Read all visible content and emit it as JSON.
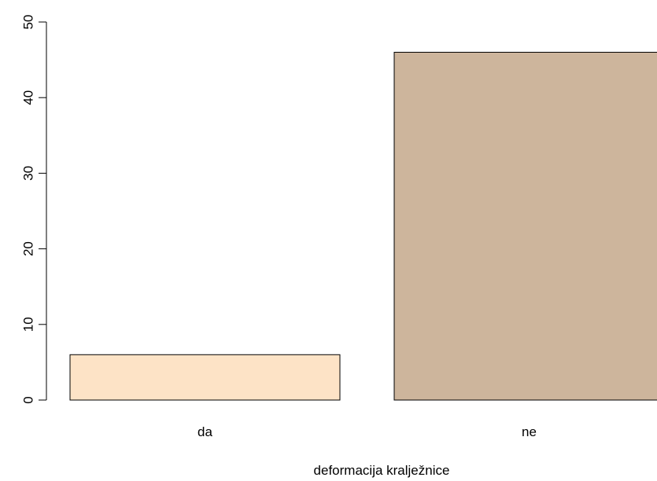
{
  "chart_data": {
    "type": "bar",
    "categories": [
      "da",
      "ne"
    ],
    "values": [
      6,
      46
    ],
    "bar_colors": [
      "#fde3c6",
      "#cdb59c"
    ],
    "xlabel": "deformacija kralježnice",
    "ylabel": "",
    "ylim": [
      0,
      50
    ],
    "yticks": [
      0,
      10,
      20,
      30,
      40,
      50
    ],
    "grid": false,
    "legend": "none"
  }
}
